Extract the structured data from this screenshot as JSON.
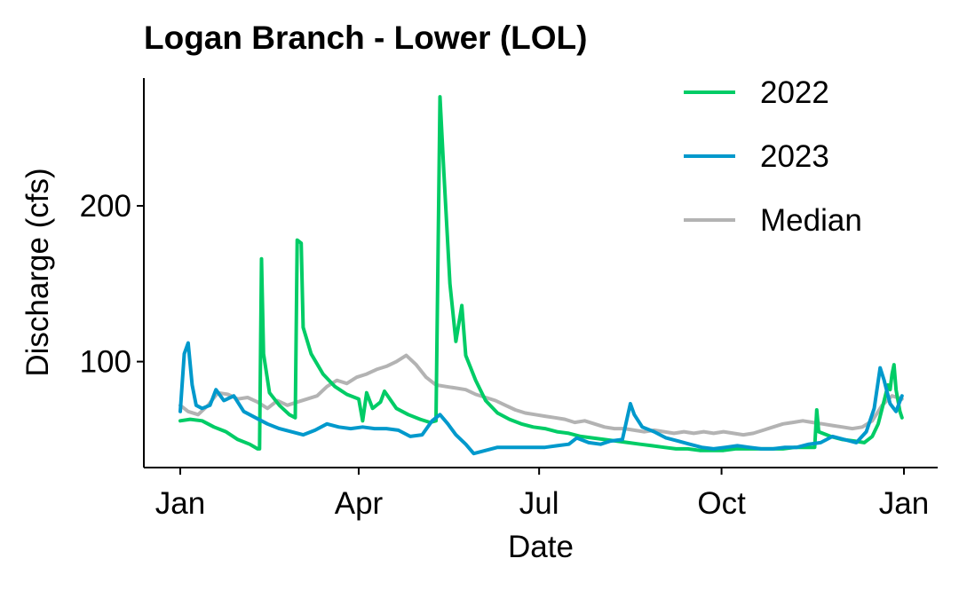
{
  "chart_data": {
    "type": "line",
    "title": "Logan Branch - Lower (LOL)",
    "xlabel": "Date",
    "ylabel": "Discharge (cfs)",
    "x_domain": [
      "2023-01-01",
      "2024-01-01"
    ],
    "xticks": [
      {
        "date": "2023-01-01",
        "label": "Jan"
      },
      {
        "date": "2023-04-01",
        "label": "Apr"
      },
      {
        "date": "2023-07-01",
        "label": "Jul"
      },
      {
        "date": "2023-10-01",
        "label": "Oct"
      },
      {
        "date": "2024-01-01",
        "label": "Jan"
      }
    ],
    "ylim": [
      32,
      282
    ],
    "yticks": [
      100,
      200
    ],
    "grid": false,
    "legend_position": "top-right",
    "series": [
      {
        "name": "2022",
        "color": "#00cc66",
        "points": [
          [
            "2023-01-01",
            62
          ],
          [
            "2023-01-06",
            63
          ],
          [
            "2023-01-12",
            62
          ],
          [
            "2023-01-18",
            58
          ],
          [
            "2023-01-24",
            55
          ],
          [
            "2023-01-30",
            50
          ],
          [
            "2023-02-05",
            47
          ],
          [
            "2023-02-09",
            44
          ],
          [
            "2023-02-10",
            44
          ],
          [
            "2023-02-11",
            166
          ],
          [
            "2023-02-12",
            105
          ],
          [
            "2023-02-15",
            80
          ],
          [
            "2023-02-20",
            72
          ],
          [
            "2023-02-25",
            66
          ],
          [
            "2023-02-28",
            64
          ],
          [
            "2023-03-01",
            178
          ],
          [
            "2023-03-03",
            176
          ],
          [
            "2023-03-04",
            122
          ],
          [
            "2023-03-08",
            105
          ],
          [
            "2023-03-14",
            92
          ],
          [
            "2023-03-20",
            84
          ],
          [
            "2023-03-26",
            79
          ],
          [
            "2023-04-01",
            76
          ],
          [
            "2023-04-03",
            62
          ],
          [
            "2023-04-05",
            80
          ],
          [
            "2023-04-08",
            70
          ],
          [
            "2023-04-12",
            74
          ],
          [
            "2023-04-14",
            81
          ],
          [
            "2023-04-20",
            70
          ],
          [
            "2023-04-26",
            66
          ],
          [
            "2023-05-02",
            63
          ],
          [
            "2023-05-07",
            61
          ],
          [
            "2023-05-10",
            62
          ],
          [
            "2023-05-12",
            270
          ],
          [
            "2023-05-14",
            220
          ],
          [
            "2023-05-17",
            150
          ],
          [
            "2023-05-20",
            113
          ],
          [
            "2023-05-23",
            136
          ],
          [
            "2023-05-25",
            104
          ],
          [
            "2023-05-30",
            88
          ],
          [
            "2023-06-04",
            75
          ],
          [
            "2023-06-10",
            67
          ],
          [
            "2023-06-16",
            63
          ],
          [
            "2023-06-22",
            60
          ],
          [
            "2023-06-28",
            58
          ],
          [
            "2023-07-04",
            57
          ],
          [
            "2023-07-10",
            55
          ],
          [
            "2023-07-16",
            54
          ],
          [
            "2023-07-22",
            52
          ],
          [
            "2023-07-28",
            51
          ],
          [
            "2023-08-03",
            50
          ],
          [
            "2023-08-09",
            49
          ],
          [
            "2023-08-15",
            48
          ],
          [
            "2023-08-21",
            47
          ],
          [
            "2023-08-27",
            46
          ],
          [
            "2023-09-02",
            45
          ],
          [
            "2023-09-08",
            44
          ],
          [
            "2023-09-14",
            44
          ],
          [
            "2023-09-20",
            43
          ],
          [
            "2023-09-26",
            43
          ],
          [
            "2023-10-02",
            43
          ],
          [
            "2023-10-08",
            44
          ],
          [
            "2023-10-14",
            44
          ],
          [
            "2023-10-20",
            44
          ],
          [
            "2023-10-26",
            44
          ],
          [
            "2023-11-01",
            44
          ],
          [
            "2023-11-07",
            45
          ],
          [
            "2023-11-13",
            45
          ],
          [
            "2023-11-17",
            45
          ],
          [
            "2023-11-18",
            69
          ],
          [
            "2023-11-19",
            55
          ],
          [
            "2023-11-25",
            52
          ],
          [
            "2023-12-01",
            50
          ],
          [
            "2023-12-07",
            49
          ],
          [
            "2023-12-12",
            48
          ],
          [
            "2023-12-16",
            52
          ],
          [
            "2023-12-19",
            60
          ],
          [
            "2023-12-22",
            75
          ],
          [
            "2023-12-24",
            85
          ],
          [
            "2023-12-25",
            82
          ],
          [
            "2023-12-26",
            92
          ],
          [
            "2023-12-27",
            98
          ],
          [
            "2023-12-28",
            82
          ],
          [
            "2023-12-30",
            68
          ],
          [
            "2023-12-31",
            64
          ]
        ]
      },
      {
        "name": "2023",
        "color": "#0099cc",
        "points": [
          [
            "2023-01-01",
            68
          ],
          [
            "2023-01-03",
            105
          ],
          [
            "2023-01-05",
            112
          ],
          [
            "2023-01-07",
            85
          ],
          [
            "2023-01-09",
            72
          ],
          [
            "2023-01-12",
            70
          ],
          [
            "2023-01-16",
            72
          ],
          [
            "2023-01-19",
            82
          ],
          [
            "2023-01-23",
            75
          ],
          [
            "2023-01-28",
            78
          ],
          [
            "2023-02-02",
            68
          ],
          [
            "2023-02-08",
            64
          ],
          [
            "2023-02-14",
            60
          ],
          [
            "2023-02-20",
            57
          ],
          [
            "2023-02-26",
            55
          ],
          [
            "2023-03-04",
            53
          ],
          [
            "2023-03-10",
            56
          ],
          [
            "2023-03-16",
            60
          ],
          [
            "2023-03-22",
            58
          ],
          [
            "2023-03-28",
            57
          ],
          [
            "2023-04-03",
            58
          ],
          [
            "2023-04-09",
            57
          ],
          [
            "2023-04-15",
            57
          ],
          [
            "2023-04-21",
            56
          ],
          [
            "2023-04-27",
            52
          ],
          [
            "2023-05-03",
            53
          ],
          [
            "2023-05-08",
            62
          ],
          [
            "2023-05-12",
            66
          ],
          [
            "2023-05-16",
            60
          ],
          [
            "2023-05-20",
            53
          ],
          [
            "2023-05-25",
            47
          ],
          [
            "2023-05-29",
            41
          ],
          [
            "2023-06-04",
            43
          ],
          [
            "2023-06-10",
            45
          ],
          [
            "2023-06-16",
            45
          ],
          [
            "2023-06-22",
            45
          ],
          [
            "2023-06-28",
            45
          ],
          [
            "2023-07-04",
            45
          ],
          [
            "2023-07-10",
            46
          ],
          [
            "2023-07-16",
            47
          ],
          [
            "2023-07-20",
            51
          ],
          [
            "2023-07-26",
            48
          ],
          [
            "2023-08-01",
            47
          ],
          [
            "2023-08-06",
            49
          ],
          [
            "2023-08-12",
            50
          ],
          [
            "2023-08-16",
            73
          ],
          [
            "2023-08-18",
            66
          ],
          [
            "2023-08-22",
            58
          ],
          [
            "2023-08-28",
            55
          ],
          [
            "2023-09-03",
            51
          ],
          [
            "2023-09-09",
            49
          ],
          [
            "2023-09-15",
            47
          ],
          [
            "2023-09-21",
            45
          ],
          [
            "2023-09-27",
            44
          ],
          [
            "2023-10-03",
            45
          ],
          [
            "2023-10-09",
            46
          ],
          [
            "2023-10-15",
            45
          ],
          [
            "2023-10-21",
            44
          ],
          [
            "2023-10-27",
            44
          ],
          [
            "2023-11-02",
            45
          ],
          [
            "2023-11-08",
            45
          ],
          [
            "2023-11-14",
            47
          ],
          [
            "2023-11-20",
            48
          ],
          [
            "2023-11-26",
            52
          ],
          [
            "2023-12-02",
            50
          ],
          [
            "2023-12-08",
            48
          ],
          [
            "2023-12-13",
            55
          ],
          [
            "2023-12-17",
            70
          ],
          [
            "2023-12-20",
            96
          ],
          [
            "2023-12-22",
            88
          ],
          [
            "2023-12-25",
            73
          ],
          [
            "2023-12-28",
            68
          ],
          [
            "2023-12-31",
            78
          ]
        ]
      },
      {
        "name": "Median",
        "color": "#b3b3b3",
        "points": [
          [
            "2023-01-01",
            72
          ],
          [
            "2023-01-05",
            68
          ],
          [
            "2023-01-10",
            66
          ],
          [
            "2023-01-15",
            72
          ],
          [
            "2023-01-20",
            80
          ],
          [
            "2023-01-25",
            79
          ],
          [
            "2023-01-30",
            76
          ],
          [
            "2023-02-04",
            77
          ],
          [
            "2023-02-09",
            74
          ],
          [
            "2023-02-14",
            70
          ],
          [
            "2023-02-19",
            75
          ],
          [
            "2023-02-24",
            72
          ],
          [
            "2023-03-01",
            74
          ],
          [
            "2023-03-06",
            76
          ],
          [
            "2023-03-11",
            78
          ],
          [
            "2023-03-16",
            84
          ],
          [
            "2023-03-21",
            88
          ],
          [
            "2023-03-26",
            86
          ],
          [
            "2023-03-31",
            90
          ],
          [
            "2023-04-05",
            92
          ],
          [
            "2023-04-10",
            95
          ],
          [
            "2023-04-15",
            97
          ],
          [
            "2023-04-20",
            100
          ],
          [
            "2023-04-25",
            104
          ],
          [
            "2023-04-30",
            98
          ],
          [
            "2023-05-05",
            90
          ],
          [
            "2023-05-10",
            85
          ],
          [
            "2023-05-15",
            84
          ],
          [
            "2023-05-20",
            83
          ],
          [
            "2023-05-25",
            82
          ],
          [
            "2023-05-30",
            79
          ],
          [
            "2023-06-04",
            77
          ],
          [
            "2023-06-09",
            75
          ],
          [
            "2023-06-14",
            72
          ],
          [
            "2023-06-19",
            69
          ],
          [
            "2023-06-24",
            67
          ],
          [
            "2023-06-29",
            66
          ],
          [
            "2023-07-04",
            65
          ],
          [
            "2023-07-09",
            64
          ],
          [
            "2023-07-14",
            63
          ],
          [
            "2023-07-19",
            61
          ],
          [
            "2023-07-24",
            62
          ],
          [
            "2023-07-29",
            60
          ],
          [
            "2023-08-03",
            58
          ],
          [
            "2023-08-08",
            57
          ],
          [
            "2023-08-13",
            57
          ],
          [
            "2023-08-18",
            56
          ],
          [
            "2023-08-23",
            55
          ],
          [
            "2023-08-28",
            56
          ],
          [
            "2023-09-02",
            55
          ],
          [
            "2023-09-07",
            54
          ],
          [
            "2023-09-12",
            55
          ],
          [
            "2023-09-17",
            54
          ],
          [
            "2023-09-22",
            55
          ],
          [
            "2023-09-27",
            54
          ],
          [
            "2023-10-02",
            55
          ],
          [
            "2023-10-07",
            54
          ],
          [
            "2023-10-12",
            53
          ],
          [
            "2023-10-17",
            54
          ],
          [
            "2023-10-22",
            56
          ],
          [
            "2023-10-27",
            58
          ],
          [
            "2023-11-01",
            60
          ],
          [
            "2023-11-06",
            61
          ],
          [
            "2023-11-11",
            62
          ],
          [
            "2023-11-16",
            61
          ],
          [
            "2023-11-21",
            60
          ],
          [
            "2023-11-26",
            59
          ],
          [
            "2023-12-01",
            58
          ],
          [
            "2023-12-06",
            57
          ],
          [
            "2023-12-11",
            58
          ],
          [
            "2023-12-16",
            62
          ],
          [
            "2023-12-21",
            72
          ],
          [
            "2023-12-26",
            78
          ],
          [
            "2023-12-31",
            76
          ]
        ]
      }
    ]
  }
}
